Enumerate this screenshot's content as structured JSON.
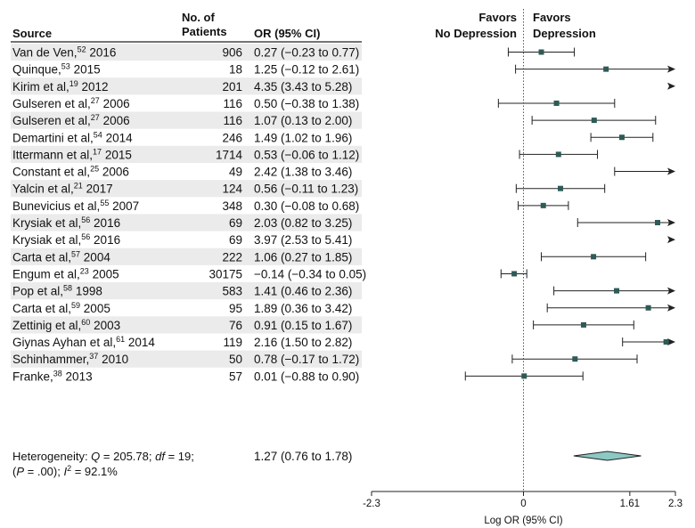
{
  "headers": {
    "source": "Source",
    "patients_line1": "No. of",
    "patients_line2": "Patients",
    "or": "OR (95% CI)",
    "favors_left_line1": "Favors",
    "favors_left_line2": "No Depression",
    "favors_right_line1": "Favors",
    "favors_right_line2": "Depression"
  },
  "rows": [
    {
      "name": "Van de Ven,",
      "ref": "52",
      "year": " 2016",
      "n": "906",
      "or_text": "0.27 (−0.23 to 0.77)"
    },
    {
      "name": "Quinque,",
      "ref": "53",
      "year": " 2015",
      "n": "18",
      "or_text": "1.25 (−0.12 to 2.61)"
    },
    {
      "name": "Kirim et al,",
      "ref": "19",
      "year": " 2012",
      "n": "201",
      "or_text": "4.35 (3.43 to 5.28)"
    },
    {
      "name": "Gulseren et al,",
      "ref": "27",
      "year": " 2006",
      "n": "116",
      "or_text": "0.50 (−0.38 to 1.38)"
    },
    {
      "name": "Gulseren et al,",
      "ref": "27",
      "year": " 2006",
      "n": "116",
      "or_text": "1.07 (0.13 to 2.00)"
    },
    {
      "name": "Demartini et al,",
      "ref": "54",
      "year": " 2014",
      "n": "246",
      "or_text": "1.49 (1.02 to 1.96)"
    },
    {
      "name": "Ittermann et al,",
      "ref": "17",
      "year": " 2015",
      "n": "1714",
      "or_text": "0.53 (−0.06 to 1.12)"
    },
    {
      "name": "Constant et al,",
      "ref": "25",
      "year": " 2006",
      "n": "49",
      "or_text": "2.42 (1.38 to 3.46)"
    },
    {
      "name": "Yalcin et al,",
      "ref": "21",
      "year": " 2017",
      "n": "124",
      "or_text": "0.56 (−0.11 to 1.23)"
    },
    {
      "name": "Bunevicius et al,",
      "ref": "55",
      "year": " 2007",
      "n": "348",
      "or_text": "0.30 (−0.08 to 0.68)"
    },
    {
      "name": "Krysiak et al,",
      "ref": "56",
      "year": " 2016",
      "n": "69",
      "or_text": "2.03 (0.82 to 3.25)"
    },
    {
      "name": "Krysiak et al,",
      "ref": "56",
      "year": " 2016",
      "n": "69",
      "or_text": "3.97 (2.53 to 5.41)"
    },
    {
      "name": "Carta et al,",
      "ref": "57",
      "year": " 2004",
      "n": "222",
      "or_text": "1.06 (0.27 to 1.85)"
    },
    {
      "name": "Engum et al,",
      "ref": "23",
      "year": " 2005",
      "n": "30175",
      "or_text": "−0.14 (−0.34 to 0.05)"
    },
    {
      "name": "Pop et al,",
      "ref": "58",
      "year": " 1998",
      "n": "583",
      "or_text": "1.41 (0.46 to 2.36)"
    },
    {
      "name": "Carta et al,",
      "ref": "59",
      "year": " 2005",
      "n": "95",
      "or_text": "1.89 (0.36 to 3.42)"
    },
    {
      "name": "Zettinig et al,",
      "ref": "60",
      "year": " 2003",
      "n": "76",
      "or_text": "0.91 (0.15 to 1.67)"
    },
    {
      "name": "Giynas Ayhan et al,",
      "ref": "61",
      "year": " 2014",
      "n": "119",
      "or_text": "2.16 (1.50 to 2.82)"
    },
    {
      "name": "Schinhammer,",
      "ref": "37",
      "year": " 2010",
      "n": "50",
      "or_text": "0.78 (−0.17 to 1.72)"
    },
    {
      "name": "Franke,",
      "ref": "38",
      "year": " 2013",
      "n": "57",
      "or_text": "0.01 (−0.88 to 0.90)"
    }
  ],
  "heterogeneity": {
    "l1a": "Heterogeneity: ",
    "l1q": "Q",
    "l1b": " = 205.78; ",
    "l1df": "df",
    "l1c": " = 19;",
    "l2a": "(",
    "l2p": "P",
    "l2b": " = .00); ",
    "l2i": "I",
    "l2sup": "2",
    "l2c": " = 92.1%",
    "or_text": "1.27 (0.76 to 1.78)"
  },
  "chart_data": {
    "type": "forest",
    "xlabel": "Log OR (95% CI)",
    "xlim": [
      -2.3,
      2.3
    ],
    "ticks": [
      -2.3,
      0,
      1.61,
      2.3
    ],
    "tick_labels": [
      "-2.3",
      "0",
      "1.61",
      "2.3"
    ],
    "reference_line": 0,
    "studies": [
      {
        "est": 0.27,
        "lo": -0.23,
        "hi": 0.77
      },
      {
        "est": 1.25,
        "lo": -0.12,
        "hi": 2.61
      },
      {
        "est": 4.35,
        "lo": 3.43,
        "hi": 5.28
      },
      {
        "est": 0.5,
        "lo": -0.38,
        "hi": 1.38
      },
      {
        "est": 1.07,
        "lo": 0.13,
        "hi": 2.0
      },
      {
        "est": 1.49,
        "lo": 1.02,
        "hi": 1.96
      },
      {
        "est": 0.53,
        "lo": -0.06,
        "hi": 1.12
      },
      {
        "est": 2.42,
        "lo": 1.38,
        "hi": 3.46
      },
      {
        "est": 0.56,
        "lo": -0.11,
        "hi": 1.23
      },
      {
        "est": 0.3,
        "lo": -0.08,
        "hi": 0.68
      },
      {
        "est": 2.03,
        "lo": 0.82,
        "hi": 3.25
      },
      {
        "est": 3.97,
        "lo": 2.53,
        "hi": 5.41
      },
      {
        "est": 1.06,
        "lo": 0.27,
        "hi": 1.85
      },
      {
        "est": -0.14,
        "lo": -0.34,
        "hi": 0.05
      },
      {
        "est": 1.41,
        "lo": 0.46,
        "hi": 2.36
      },
      {
        "est": 1.89,
        "lo": 0.36,
        "hi": 3.42
      },
      {
        "est": 0.91,
        "lo": 0.15,
        "hi": 1.67
      },
      {
        "est": 2.16,
        "lo": 1.5,
        "hi": 2.82
      },
      {
        "est": 0.78,
        "lo": -0.17,
        "hi": 1.72
      },
      {
        "est": 0.01,
        "lo": -0.88,
        "hi": 0.9
      }
    ],
    "pooled": {
      "est": 1.27,
      "lo": 0.76,
      "hi": 1.78
    },
    "marker_color": "#2e5a57",
    "diamond_fill": "#8cc8c4",
    "row_shading": "#ebebeb",
    "line_color": "#222222"
  }
}
